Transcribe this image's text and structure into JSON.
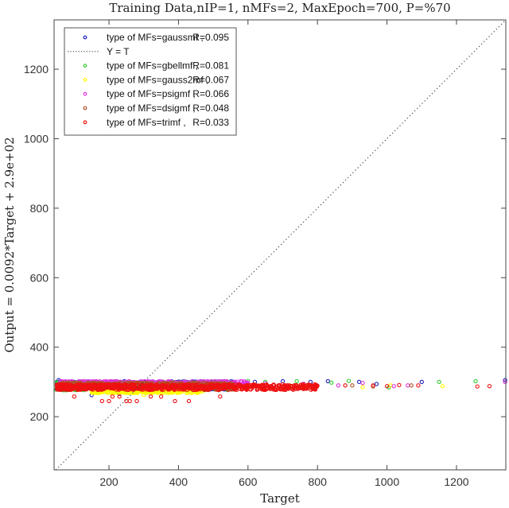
{
  "chart_data": {
    "type": "scatter",
    "title": "Training Data,nIP=1, nMFs=2, MaxEpoch=700, P=%70",
    "xlabel": "Target",
    "ylabel": "Output  = 0.0092*Target + 2.9e+02",
    "xlim": [
      42,
      1342
    ],
    "ylim": [
      47,
      1342
    ],
    "xticks": [
      200,
      400,
      600,
      800,
      1000,
      1200
    ],
    "yticks": [
      200,
      400,
      600,
      800,
      1000,
      1200
    ],
    "grid": false,
    "legend_position": "upper-left",
    "reference_line": {
      "label": "Y = T",
      "style": "dotted",
      "color": "#333333"
    },
    "series": [
      {
        "name": "type of MFs=gaussmf ,",
        "r_label": "R=0.095",
        "color": "#1f1fbf",
        "R": 0.095,
        "band": {
          "x_dense": [
            50,
            560
          ],
          "y_center": 290,
          "y_spread": 12
        },
        "outliers": [
          [
            55,
            305
          ],
          [
            60,
            300
          ],
          [
            150,
            262
          ],
          [
            230,
            266
          ],
          [
            300,
            270
          ],
          [
            620,
            300
          ],
          [
            700,
            302
          ],
          [
            780,
            300
          ],
          [
            830,
            302
          ],
          [
            920,
            300
          ],
          [
            970,
            294
          ],
          [
            1100,
            300
          ],
          [
            1340,
            305
          ]
        ]
      },
      {
        "name": "type of MFs=gbellmf ,",
        "r_label": "R=0.081",
        "color": "#33cc33",
        "R": 0.081,
        "band": {
          "x_dense": [
            50,
            560
          ],
          "y_center": 288,
          "y_spread": 12
        },
        "outliers": [
          [
            48,
            278
          ],
          [
            600,
            303
          ],
          [
            650,
            300
          ],
          [
            740,
            302
          ],
          [
            840,
            298
          ],
          [
            890,
            303
          ],
          [
            1005,
            284
          ],
          [
            1150,
            300
          ],
          [
            1255,
            302
          ]
        ]
      },
      {
        "name": "type of MFs=gauss2mf ,",
        "r_label": "R=0.067",
        "color": "#ffff00",
        "R": 0.067,
        "band": {
          "x_dense": [
            150,
            470
          ],
          "y_center": 276,
          "y_spread": 8
        },
        "outliers": [
          [
            300,
            262
          ],
          [
            720,
            290
          ],
          [
            930,
            285
          ],
          [
            1010,
            290
          ],
          [
            1160,
            288
          ]
        ]
      },
      {
        "name": "type of MFs=psigmf ,",
        "r_label": "R=0.066",
        "color": "#dd33dd",
        "R": 0.066,
        "band": {
          "x_dense": [
            60,
            600
          ],
          "y_center": 296,
          "y_spread": 6
        },
        "outliers": [
          [
            53,
            290
          ],
          [
            650,
            296
          ],
          [
            760,
            295
          ],
          [
            860,
            290
          ],
          [
            930,
            297
          ],
          [
            1020,
            288
          ],
          [
            1060,
            290
          ],
          [
            1340,
            300
          ]
        ]
      },
      {
        "name": "type of MFs=dsigmf ,",
        "r_label": "R=0.048",
        "color": "#b0542a",
        "R": 0.048,
        "band": {
          "x_dense": [
            60,
            560
          ],
          "y_center": 290,
          "y_spread": 8
        },
        "outliers": [
          [
            780,
            288
          ],
          [
            900,
            290
          ],
          [
            960,
            287
          ],
          [
            1070,
            290
          ]
        ]
      },
      {
        "name": "type of MFs=trimf ,",
        "r_label": "R=0.033",
        "color": "#ee1111",
        "R": 0.033,
        "band": {
          "x_dense": [
            50,
            800
          ],
          "y_center": 285,
          "y_spread": 8
        },
        "outliers": [
          [
            100,
            258
          ],
          [
            180,
            245
          ],
          [
            200,
            245
          ],
          [
            210,
            258
          ],
          [
            230,
            258
          ],
          [
            250,
            245
          ],
          [
            260,
            245
          ],
          [
            280,
            245
          ],
          [
            320,
            258
          ],
          [
            350,
            258
          ],
          [
            390,
            245
          ],
          [
            430,
            245
          ],
          [
            520,
            258
          ],
          [
            690,
            290
          ],
          [
            760,
            290
          ],
          [
            880,
            290
          ],
          [
            960,
            290
          ],
          [
            1000,
            288
          ],
          [
            1035,
            291
          ],
          [
            1090,
            290
          ],
          [
            1260,
            287
          ],
          [
            1295,
            288
          ]
        ]
      }
    ]
  }
}
